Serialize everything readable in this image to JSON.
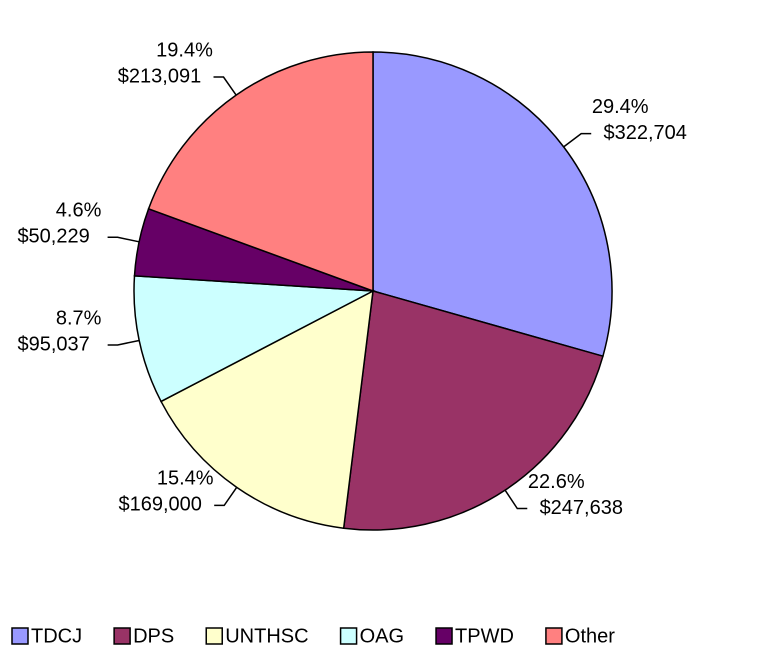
{
  "chart_data": {
    "type": "pie",
    "categories": [
      "TDCJ",
      "DPS",
      "UNTHSC",
      "OAG",
      "TPWD",
      "Other"
    ],
    "values": [
      322704,
      247638,
      169000,
      95037,
      50229,
      213091
    ],
    "value_labels": [
      "$322,704",
      "$247,638",
      "$169,000",
      "$95,037",
      "$50,229",
      "$213,091"
    ],
    "percent_values": [
      29.4,
      22.6,
      15.4,
      8.7,
      4.6,
      19.4
    ],
    "percent_labels": [
      "29.4%",
      "22.6%",
      "15.4%",
      "8.7%",
      "4.6%",
      "19.4%"
    ],
    "colors": [
      "#9999ff",
      "#993366",
      "#ffffcc",
      "#ccffff",
      "#660066",
      "#ff8080"
    ],
    "legend": "bottom"
  }
}
